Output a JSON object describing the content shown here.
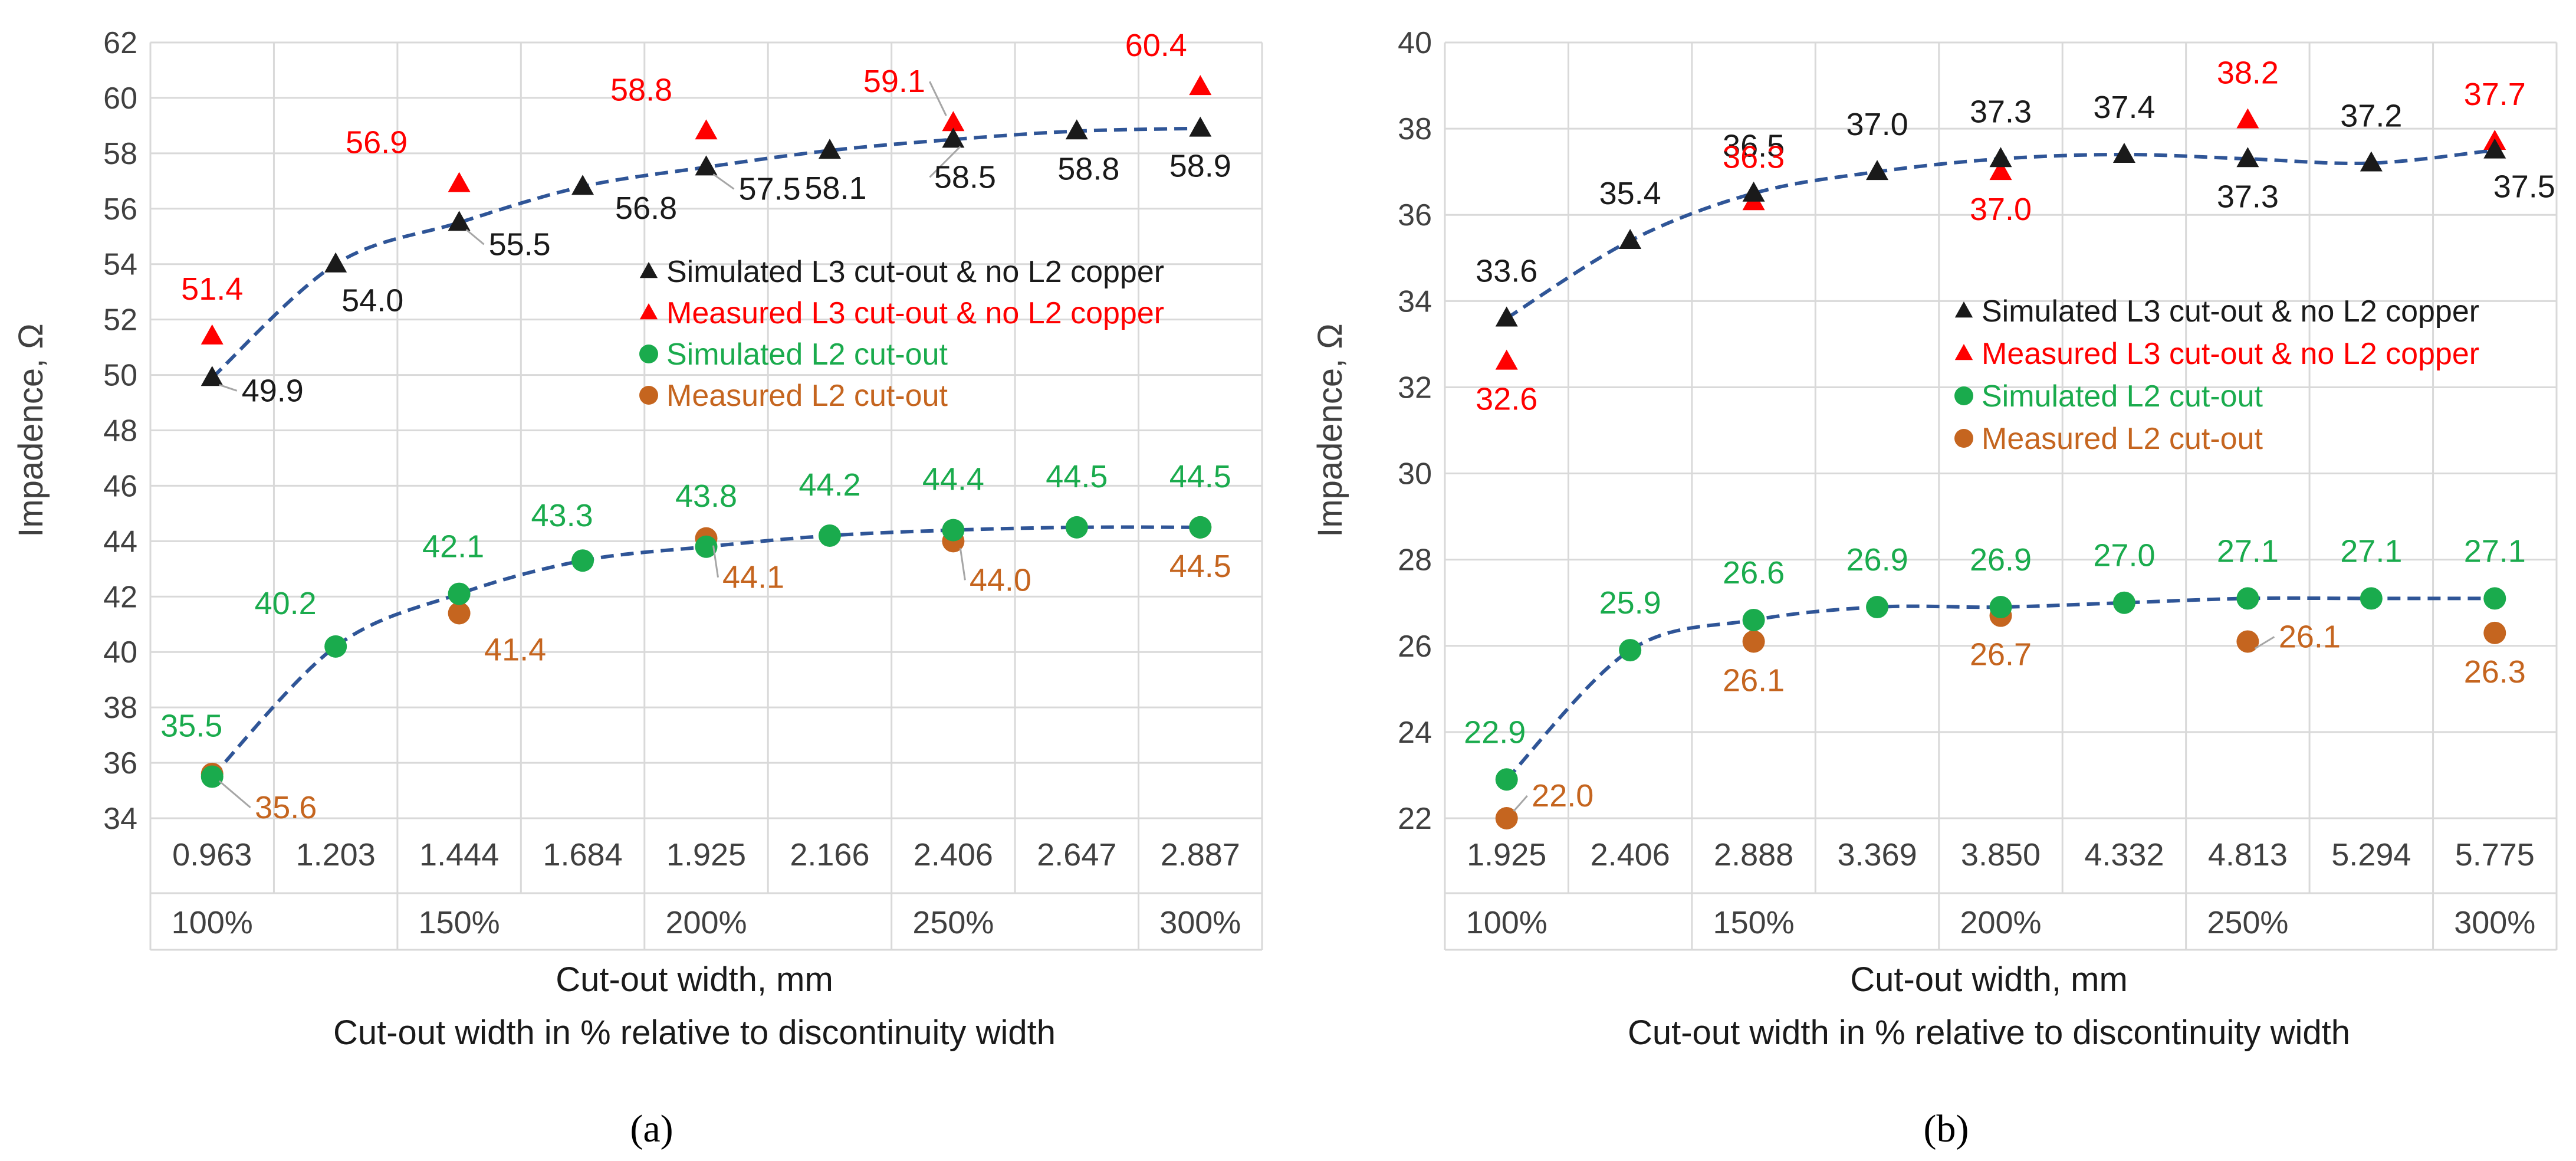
{
  "chart_data": [
    {
      "type": "scatter",
      "panel_label": "(a)",
      "ylabel": "Impadence, Ω",
      "xlabel": "Cut-out width, mm",
      "xlabel2": "Cut-out width in % relative to discontinuity width",
      "ylim": [
        34,
        62
      ],
      "yticks": [
        "34",
        "36",
        "38",
        "40",
        "42",
        "44",
        "46",
        "48",
        "50",
        "52",
        "54",
        "56",
        "58",
        "60",
        "62"
      ],
      "categories": [
        "0.963",
        "1.203",
        "1.444",
        "1.684",
        "1.925",
        "2.166",
        "2.406",
        "2.647",
        "2.887"
      ],
      "percent_labels": [
        "100%",
        "",
        "150%",
        "",
        "200%",
        "",
        "250%",
        "",
        "300%"
      ],
      "grid": true,
      "legend_position": "right-middle",
      "series": [
        {
          "name": "Simulated L3 cut-out & no L2 copper",
          "marker": "triangle",
          "color": "#1a1a1a",
          "label_color": "#1a1a1a",
          "trend": true,
          "values": [
            49.9,
            54.0,
            55.5,
            56.8,
            57.5,
            58.1,
            58.5,
            58.8,
            58.9
          ],
          "labels": [
            "49.9",
            "54.0",
            "55.5",
            "56.8",
            "57.5",
            "58.1",
            "58.5",
            "58.8",
            "58.9"
          ]
        },
        {
          "name": "Measured L3 cut-out & no L2 copper",
          "marker": "triangle",
          "color": "#ff0000",
          "label_color": "#ff0000",
          "trend": false,
          "values": [
            51.4,
            null,
            56.9,
            null,
            58.8,
            null,
            59.1,
            null,
            60.4
          ],
          "labels": [
            "51.4",
            "",
            "56.9",
            "",
            "58.8",
            "",
            "59.1",
            "",
            "60.4"
          ]
        },
        {
          "name": "Simulated L2 cut-out",
          "marker": "circle",
          "color": "#1aab4d",
          "label_color": "#1aab4d",
          "trend": true,
          "values": [
            35.5,
            40.2,
            42.1,
            43.3,
            43.8,
            44.2,
            44.4,
            44.5,
            44.5
          ],
          "labels": [
            "35.5",
            "40.2",
            "42.1",
            "43.3",
            "43.8",
            "44.2",
            "44.4",
            "44.5",
            "44.5"
          ]
        },
        {
          "name": "Measured L2 cut-out",
          "marker": "circle",
          "color": "#c5651f",
          "label_color": "#c5651f",
          "trend": false,
          "values": [
            35.6,
            null,
            41.4,
            null,
            44.1,
            null,
            44.0,
            null,
            44.5
          ],
          "labels": [
            "35.6",
            "",
            "41.4",
            "",
            "44.1",
            "",
            "44.0",
            "",
            "44.5"
          ]
        }
      ]
    },
    {
      "type": "scatter",
      "panel_label": "(b)",
      "ylabel": "Impadence, Ω",
      "xlabel": "Cut-out width, mm",
      "xlabel2": "Cut-out width in % relative to discontinuity width",
      "ylim": [
        22,
        40
      ],
      "yticks": [
        "22",
        "24",
        "26",
        "28",
        "30",
        "32",
        "34",
        "36",
        "38",
        "40"
      ],
      "categories": [
        "1.925",
        "2.406",
        "2.888",
        "3.369",
        "3.850",
        "4.332",
        "4.813",
        "5.294",
        "5.775"
      ],
      "percent_labels": [
        "100%",
        "",
        "150%",
        "",
        "200%",
        "",
        "250%",
        "",
        "300%"
      ],
      "grid": true,
      "legend_position": "right-middle",
      "series": [
        {
          "name": "Simulated L3 cut-out & no L2 copper",
          "marker": "triangle",
          "color": "#1a1a1a",
          "label_color": "#1a1a1a",
          "trend": true,
          "values": [
            33.6,
            35.4,
            36.5,
            37.0,
            37.3,
            37.4,
            37.3,
            37.2,
            37.5
          ],
          "labels": [
            "33.6",
            "35.4",
            "36.5",
            "37.0",
            "37.3",
            "37.4",
            "37.3",
            "37.2",
            "37.5"
          ]
        },
        {
          "name": "Measured L3 cut-out & no L2 copper",
          "marker": "triangle",
          "color": "#ff0000",
          "label_color": "#ff0000",
          "trend": false,
          "values": [
            32.6,
            null,
            36.3,
            null,
            37.0,
            null,
            38.2,
            null,
            37.7
          ],
          "labels": [
            "32.6",
            "",
            "36.3",
            "",
            "37.0",
            "",
            "38.2",
            "",
            "37.7"
          ]
        },
        {
          "name": "Simulated L2 cut-out",
          "marker": "circle",
          "color": "#1aab4d",
          "label_color": "#1aab4d",
          "trend": true,
          "values": [
            22.9,
            25.9,
            26.6,
            26.9,
            26.9,
            27.0,
            27.1,
            27.1,
            27.1
          ],
          "labels": [
            "22.9",
            "25.9",
            "26.6",
            "26.9",
            "26.9",
            "27.0",
            "27.1",
            "27.1",
            "27.1"
          ]
        },
        {
          "name": "Measured L2 cut-out",
          "marker": "circle",
          "color": "#c5651f",
          "label_color": "#c5651f",
          "trend": false,
          "values": [
            22.0,
            null,
            26.1,
            null,
            26.7,
            null,
            26.1,
            null,
            26.3
          ],
          "labels": [
            "22.0",
            "",
            "26.1",
            "",
            "26.7",
            "",
            "26.1",
            "",
            "26.3"
          ]
        }
      ]
    }
  ],
  "colors": {
    "trend_line": "#2f5597",
    "grid": "#d9d9d9",
    "axis_text": "#404040",
    "leader": "#a6a6a6"
  }
}
